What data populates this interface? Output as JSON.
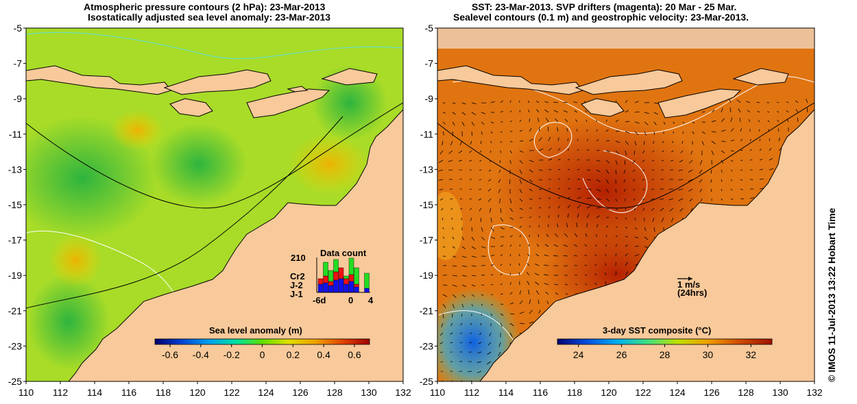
{
  "left_panel": {
    "title_line1": "Atmospheric pressure contours (2 hPa): 23-Mar-2013",
    "title_line2": "Isostatically adjusted sea level anomaly: 23-Mar-2013",
    "colorbar_title": "Sea level anomaly (m)",
    "colorbar_ticks": [
      "-0.6",
      "-0.4",
      "-0.2",
      "0",
      "0.2",
      "0.4",
      "0.6"
    ],
    "data_count": {
      "title": "Data count",
      "max_label": "210",
      "legend": [
        {
          "label": "Cr2",
          "color": "#22dd22"
        },
        {
          "label": "J-2",
          "color": "#ee1111"
        },
        {
          "label": "J-1",
          "color": "#1111ee"
        }
      ],
      "x_labels": [
        "-6d",
        "0",
        "4"
      ],
      "bins": [
        {
          "j1": 12,
          "j2": 8,
          "cr2": 0
        },
        {
          "j1": 14,
          "j2": 10,
          "cr2": 20
        },
        {
          "j1": 10,
          "j2": 6,
          "cr2": 16
        },
        {
          "j1": 18,
          "j2": 12,
          "cr2": 18
        },
        {
          "j1": 20,
          "j2": 16,
          "cr2": 0
        },
        {
          "j1": 12,
          "j2": 8,
          "cr2": 4
        },
        {
          "j1": 16,
          "j2": 10,
          "cr2": 24
        },
        {
          "j1": 8,
          "j2": 4,
          "cr2": 24
        },
        {
          "j1": 0,
          "j2": 0,
          "cr2": 0
        },
        {
          "j1": 6,
          "j2": 0,
          "cr2": 22
        }
      ]
    }
  },
  "right_panel": {
    "title_line1": "SST: 23-Mar-2013. SVP drifters (magenta): 20 Mar - 25 Mar.",
    "title_line2": "Sealevel contours (0.1 m) and geostrophic velocity: 23-Mar-2013.",
    "colorbar_title": "3-day SST composite (°C)",
    "colorbar_ticks": [
      "24",
      "26",
      "28",
      "30",
      "32"
    ],
    "scale_label": "1 m/s",
    "scale_note": "(24hrs)"
  },
  "axes": {
    "lon_ticks": [
      "110",
      "112",
      "114",
      "116",
      "118",
      "120",
      "122",
      "124",
      "126",
      "128",
      "130",
      "132"
    ],
    "lat_ticks": [
      "-5",
      "-7",
      "-9",
      "-11",
      "-13",
      "-15",
      "-17",
      "-19",
      "-21",
      "-23",
      "-25"
    ]
  },
  "credit": "© IMOS 11-Jul-2013 13:22 Hobart Time",
  "colors": {
    "land": "#f8c99a",
    "sla_scale": [
      "#000070",
      "#0040d0",
      "#00a0f0",
      "#00e0a0",
      "#60e000",
      "#e0e000",
      "#f0a000",
      "#e04000",
      "#a00000"
    ],
    "sst_scale": [
      "#000070",
      "#0050e0",
      "#00b0f0",
      "#40e080",
      "#c0e000",
      "#f0a000",
      "#d05000",
      "#a01000"
    ]
  }
}
